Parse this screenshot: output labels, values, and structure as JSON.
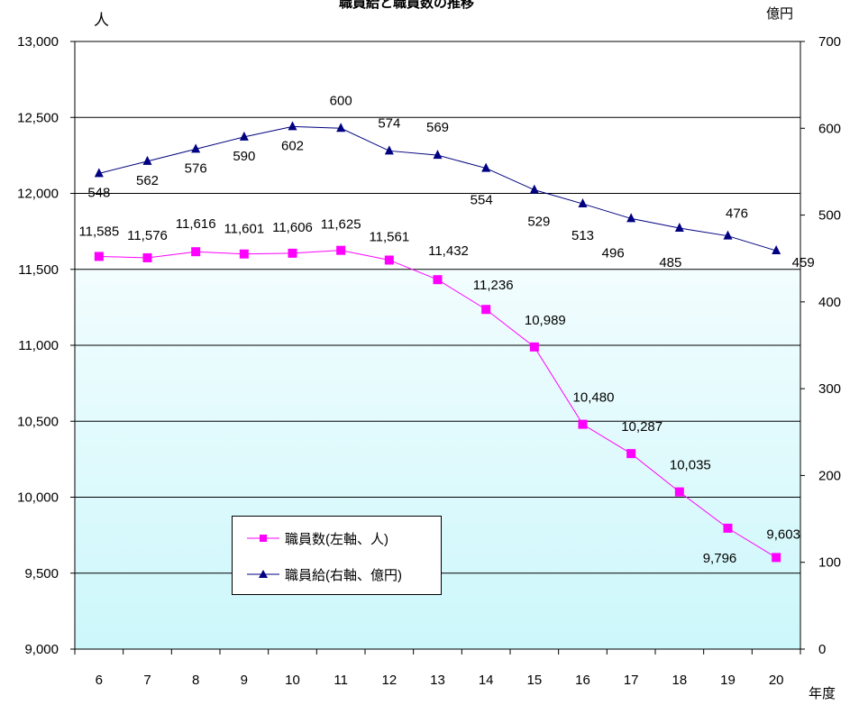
{
  "chart_data": {
    "type": "line",
    "title": "職員給と職員数の推移",
    "left_axis_unit": "人",
    "right_axis_unit": "億円",
    "x_axis_unit": "年度",
    "categories": [
      "6",
      "7",
      "8",
      "9",
      "10",
      "11",
      "12",
      "13",
      "14",
      "15",
      "16",
      "17",
      "18",
      "19",
      "20"
    ],
    "left_axis": {
      "min": 9000,
      "max": 13000,
      "ticks": [
        "9,000",
        "9,500",
        "10,000",
        "10,500",
        "11,000",
        "11,500",
        "12,000",
        "12,500",
        "13,000"
      ]
    },
    "right_axis": {
      "min": 0,
      "max": 700,
      "ticks": [
        "0",
        "100",
        "200",
        "300",
        "400",
        "500",
        "600",
        "700"
      ]
    },
    "series": [
      {
        "name": "職員数(左軸、人)",
        "axis": "left",
        "color": "#ff00ff",
        "marker": "square",
        "values": [
          11585,
          11576,
          11616,
          11601,
          11606,
          11625,
          11561,
          11432,
          11236,
          10989,
          10480,
          10287,
          10035,
          9796,
          9603
        ],
        "labels": [
          "11,585",
          "11,576",
          "11,616",
          "11,601",
          "11,606",
          "11,625",
          "11,561",
          "11,432",
          "11,236",
          "10,989",
          "10,480",
          "10,287",
          "10,035",
          "9,796",
          "9,603"
        ]
      },
      {
        "name": "職員給(右軸、億円)",
        "axis": "right",
        "color": "#000080",
        "marker": "triangle",
        "values": [
          548,
          562,
          576,
          590,
          602,
          600,
          574,
          569,
          554,
          529,
          513,
          496,
          485,
          476,
          459
        ],
        "labels": [
          "548",
          "562",
          "576",
          "590",
          "602",
          "600",
          "574",
          "569",
          "554",
          "529",
          "513",
          "496",
          "485",
          "476",
          "459"
        ]
      }
    ],
    "grid": true,
    "legend_position": "bottom-left"
  }
}
